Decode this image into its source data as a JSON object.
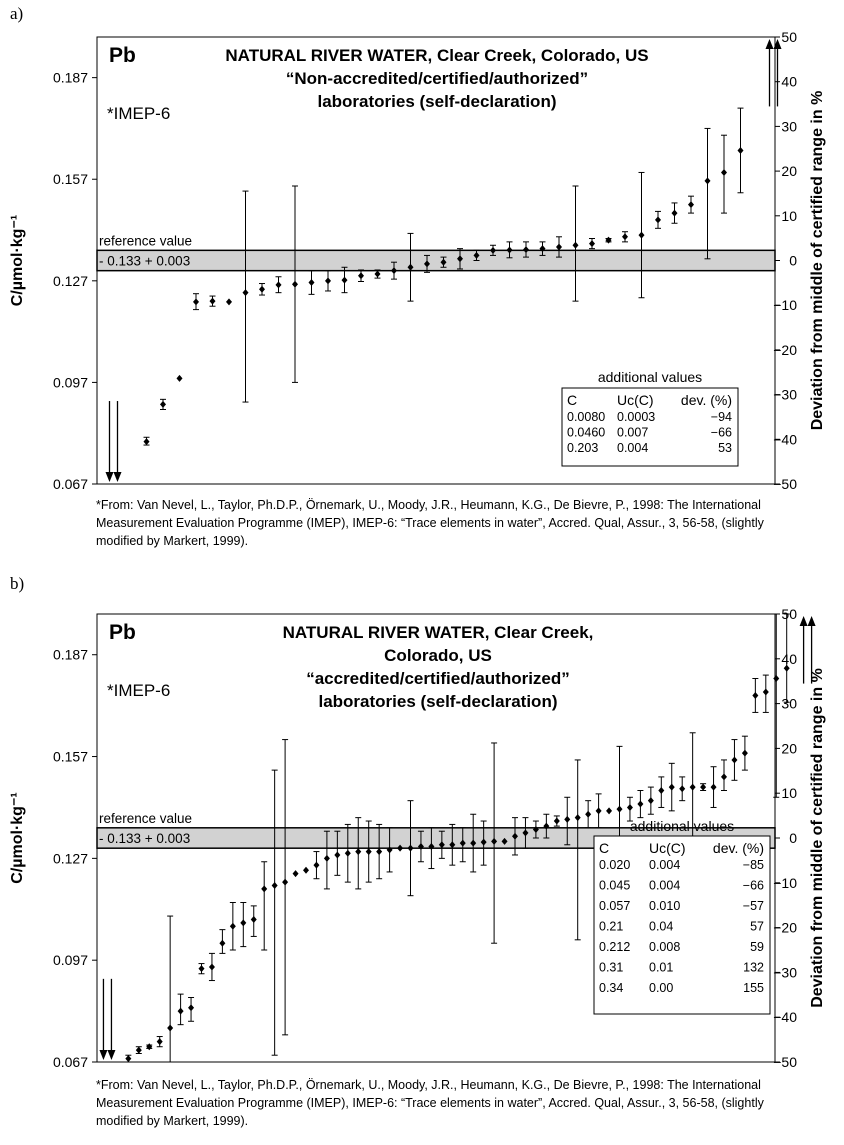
{
  "panels": [
    {
      "letter": "a)",
      "footnote": "*From: Van Nevel, L., Taylor, Ph.D.P., Örnemark, U., Moody, J.R., Heumann, K.G., De Bievre, P., 1998: The International Measurement Evaluation Programme (IMEP), IMEP-6: “Trace elements in water”, Accred. Qual, Assur., 3, 56-58, (slightly modified by Markert, 1999)."
    },
    {
      "letter": "b)",
      "footnote": "*From: Van Nevel, L., Taylor, Ph.D.P., Örnemark, U., Moody, J.R., Heumann, K.G., De Bievre, P., 1998: The International Measurement Evaluation Programme (IMEP), IMEP-6: “Trace elements in water”, Accred. Qual, Assur., 3, 56-58, (slightly modified by Markert, 1999)."
    }
  ],
  "chart_data": [
    {
      "type": "scatter",
      "element": "Pb",
      "source_tag": "*IMEP-6",
      "title_lines": [
        "NATURAL RIVER WATER, Clear Creek, Colorado, US",
        "“Non-accredited/certified/authorized”",
        "laboratories (self-declaration)"
      ],
      "ylabel": "C/µmol·kg⁻¹",
      "y2label": "Deviation from middle of certified range in %",
      "ylim": [
        0.067,
        0.199
      ],
      "yticks": [
        "0.187",
        "0.157",
        "0.127",
        "0.097",
        "0.067"
      ],
      "y2lim": [
        -50,
        50
      ],
      "y2ticks": [
        "50",
        "40",
        "30",
        "20",
        "10",
        "0",
        "−10",
        "−20",
        "−30",
        "−40",
        "−50"
      ],
      "reference": {
        "label": "reference value",
        "value_text": "0.133 + 0.003",
        "low": 0.13,
        "high": 0.136
      },
      "arrows": [
        {
          "x": 1,
          "direction": "down",
          "count": 2
        },
        {
          "x": 41,
          "direction": "up",
          "count": 2
        }
      ],
      "points": [
        {
          "x": 3,
          "y": 0.0795,
          "lo": 0.0785,
          "hi": 0.0808
        },
        {
          "x": 4,
          "y": 0.0905,
          "lo": 0.089,
          "hi": 0.092
        },
        {
          "x": 5,
          "y": 0.0982,
          "lo": 0.0982,
          "hi": 0.0982
        },
        {
          "x": 6,
          "y": 0.1208,
          "lo": 0.1185,
          "hi": 0.1232
        },
        {
          "x": 7,
          "y": 0.121,
          "lo": 0.1195,
          "hi": 0.1225
        },
        {
          "x": 8,
          "y": 0.1208,
          "lo": 0.1208,
          "hi": 0.1208
        },
        {
          "x": 9,
          "y": 0.1235,
          "lo": 0.0912,
          "hi": 0.1535
        },
        {
          "x": 10,
          "y": 0.1245,
          "lo": 0.1228,
          "hi": 0.1262
        },
        {
          "x": 11,
          "y": 0.1258,
          "lo": 0.1235,
          "hi": 0.1282
        },
        {
          "x": 12,
          "y": 0.126,
          "lo": 0.097,
          "hi": 0.155
        },
        {
          "x": 13,
          "y": 0.1265,
          "lo": 0.123,
          "hi": 0.13
        },
        {
          "x": 14,
          "y": 0.127,
          "lo": 0.124,
          "hi": 0.13
        },
        {
          "x": 15,
          "y": 0.1272,
          "lo": 0.1235,
          "hi": 0.131
        },
        {
          "x": 16,
          "y": 0.1285,
          "lo": 0.1268,
          "hi": 0.1302
        },
        {
          "x": 17,
          "y": 0.129,
          "lo": 0.1278,
          "hi": 0.1302
        },
        {
          "x": 18,
          "y": 0.13,
          "lo": 0.1275,
          "hi": 0.1325
        },
        {
          "x": 19,
          "y": 0.131,
          "lo": 0.121,
          "hi": 0.141
        },
        {
          "x": 20,
          "y": 0.132,
          "lo": 0.1295,
          "hi": 0.1345
        },
        {
          "x": 21,
          "y": 0.1325,
          "lo": 0.131,
          "hi": 0.134
        },
        {
          "x": 22,
          "y": 0.1335,
          "lo": 0.1305,
          "hi": 0.1365
        },
        {
          "x": 23,
          "y": 0.1345,
          "lo": 0.133,
          "hi": 0.136
        },
        {
          "x": 24,
          "y": 0.136,
          "lo": 0.1345,
          "hi": 0.1375
        },
        {
          "x": 25,
          "y": 0.1361,
          "lo": 0.1338,
          "hi": 0.1385
        },
        {
          "x": 26,
          "y": 0.1362,
          "lo": 0.134,
          "hi": 0.1385
        },
        {
          "x": 27,
          "y": 0.1365,
          "lo": 0.1345,
          "hi": 0.1385
        },
        {
          "x": 28,
          "y": 0.137,
          "lo": 0.134,
          "hi": 0.14
        },
        {
          "x": 29,
          "y": 0.1375,
          "lo": 0.121,
          "hi": 0.155
        },
        {
          "x": 30,
          "y": 0.138,
          "lo": 0.1365,
          "hi": 0.1395
        },
        {
          "x": 31,
          "y": 0.139,
          "lo": 0.1385,
          "hi": 0.1395
        },
        {
          "x": 32,
          "y": 0.14,
          "lo": 0.1385,
          "hi": 0.1415
        },
        {
          "x": 33,
          "y": 0.1405,
          "lo": 0.122,
          "hi": 0.159
        },
        {
          "x": 34,
          "y": 0.145,
          "lo": 0.1425,
          "hi": 0.1475
        },
        {
          "x": 35,
          "y": 0.147,
          "lo": 0.144,
          "hi": 0.15
        },
        {
          "x": 36,
          "y": 0.1495,
          "lo": 0.147,
          "hi": 0.152
        },
        {
          "x": 37,
          "y": 0.1565,
          "lo": 0.1335,
          "hi": 0.172
        },
        {
          "x": 38,
          "y": 0.159,
          "lo": 0.147,
          "hi": 0.17
        },
        {
          "x": 39,
          "y": 0.1655,
          "lo": 0.153,
          "hi": 0.178
        }
      ],
      "additional_values": {
        "title": "additional values",
        "headers": [
          "C",
          "Uc(C)",
          "dev. (%)"
        ],
        "rows": [
          [
            "0.0080",
            "0.0003",
            "−94"
          ],
          [
            "0.0460",
            "0.007",
            "−66"
          ],
          [
            "0.203",
            "0.004",
            "53"
          ]
        ]
      }
    },
    {
      "type": "scatter",
      "element": "Pb",
      "source_tag": "*IMEP-6",
      "title_lines": [
        "NATURAL RIVER WATER, Clear Creek,",
        "Colorado, US",
        "“accredited/certified/authorized”",
        "laboratories (self-declaration)"
      ],
      "ylabel": "C/µmol·kg⁻¹",
      "y2label": "Deviation from middle of certified range in %",
      "ylim": [
        0.067,
        0.199
      ],
      "yticks": [
        "0.187",
        "0.157",
        "0.127",
        "0.097",
        "0.067"
      ],
      "y2lim": [
        -50,
        50
      ],
      "y2ticks": [
        "50",
        "40",
        "30",
        "20",
        "10",
        "0",
        "−10",
        "−20",
        "−30",
        "−40",
        "−50"
      ],
      "reference": {
        "label": "reference value",
        "value_text": "0.133 + 0.003",
        "low": 0.13,
        "high": 0.136
      },
      "arrows": [
        {
          "x": 1,
          "direction": "down",
          "count": 2
        },
        {
          "x": 68,
          "direction": "up",
          "count": 2
        }
      ],
      "points": [
        {
          "x": 3,
          "y": 0.068,
          "lo": 0.067,
          "hi": 0.069
        },
        {
          "x": 4,
          "y": 0.0705,
          "lo": 0.0695,
          "hi": 0.0715
        },
        {
          "x": 5,
          "y": 0.0715,
          "lo": 0.071,
          "hi": 0.072
        },
        {
          "x": 6,
          "y": 0.073,
          "lo": 0.0715,
          "hi": 0.0745
        },
        {
          "x": 7,
          "y": 0.077,
          "lo": 0.067,
          "hi": 0.11
        },
        {
          "x": 8,
          "y": 0.082,
          "lo": 0.078,
          "hi": 0.087
        },
        {
          "x": 9,
          "y": 0.083,
          "lo": 0.079,
          "hi": 0.086
        },
        {
          "x": 10,
          "y": 0.0945,
          "lo": 0.093,
          "hi": 0.096
        },
        {
          "x": 11,
          "y": 0.095,
          "lo": 0.091,
          "hi": 0.099
        },
        {
          "x": 12,
          "y": 0.102,
          "lo": 0.099,
          "hi": 0.106
        },
        {
          "x": 13,
          "y": 0.107,
          "lo": 0.1,
          "hi": 0.114
        },
        {
          "x": 14,
          "y": 0.108,
          "lo": 0.101,
          "hi": 0.114
        },
        {
          "x": 15,
          "y": 0.109,
          "lo": 0.104,
          "hi": 0.113
        },
        {
          "x": 16,
          "y": 0.118,
          "lo": 0.1,
          "hi": 0.126
        },
        {
          "x": 17,
          "y": 0.119,
          "lo": 0.069,
          "hi": 0.153
        },
        {
          "x": 18,
          "y": 0.12,
          "lo": 0.075,
          "hi": 0.162
        },
        {
          "x": 19,
          "y": 0.1225,
          "lo": 0.1225,
          "hi": 0.1225
        },
        {
          "x": 20,
          "y": 0.1235,
          "lo": 0.1235,
          "hi": 0.1235
        },
        {
          "x": 21,
          "y": 0.125,
          "lo": 0.121,
          "hi": 0.129
        },
        {
          "x": 22,
          "y": 0.127,
          "lo": 0.118,
          "hi": 0.135
        },
        {
          "x": 23,
          "y": 0.128,
          "lo": 0.122,
          "hi": 0.135
        },
        {
          "x": 24,
          "y": 0.1285,
          "lo": 0.12,
          "hi": 0.137
        },
        {
          "x": 25,
          "y": 0.129,
          "lo": 0.118,
          "hi": 0.139
        },
        {
          "x": 26,
          "y": 0.129,
          "lo": 0.12,
          "hi": 0.138
        },
        {
          "x": 27,
          "y": 0.129,
          "lo": 0.121,
          "hi": 0.137
        },
        {
          "x": 28,
          "y": 0.1295,
          "lo": 0.123,
          "hi": 0.136
        },
        {
          "x": 29,
          "y": 0.13,
          "lo": 0.13,
          "hi": 0.13
        },
        {
          "x": 30,
          "y": 0.13,
          "lo": 0.116,
          "hi": 0.144
        },
        {
          "x": 31,
          "y": 0.1305,
          "lo": 0.126,
          "hi": 0.135
        },
        {
          "x": 32,
          "y": 0.1305,
          "lo": 0.124,
          "hi": 0.136
        },
        {
          "x": 33,
          "y": 0.131,
          "lo": 0.127,
          "hi": 0.135
        },
        {
          "x": 34,
          "y": 0.131,
          "lo": 0.125,
          "hi": 0.137
        },
        {
          "x": 35,
          "y": 0.1315,
          "lo": 0.126,
          "hi": 0.136
        },
        {
          "x": 36,
          "y": 0.1315,
          "lo": 0.123,
          "hi": 0.14
        },
        {
          "x": 37,
          "y": 0.1318,
          "lo": 0.125,
          "hi": 0.138
        },
        {
          "x": 38,
          "y": 0.132,
          "lo": 0.102,
          "hi": 0.161
        },
        {
          "x": 39,
          "y": 0.132,
          "lo": 0.132,
          "hi": 0.132
        },
        {
          "x": 40,
          "y": 0.1335,
          "lo": 0.128,
          "hi": 0.139
        },
        {
          "x": 41,
          "y": 0.1345,
          "lo": 0.13,
          "hi": 0.139
        },
        {
          "x": 42,
          "y": 0.1355,
          "lo": 0.133,
          "hi": 0.138
        },
        {
          "x": 43,
          "y": 0.1365,
          "lo": 0.133,
          "hi": 0.14
        },
        {
          "x": 44,
          "y": 0.138,
          "lo": 0.1365,
          "hi": 0.1395
        },
        {
          "x": 45,
          "y": 0.1385,
          "lo": 0.131,
          "hi": 0.145
        },
        {
          "x": 46,
          "y": 0.139,
          "lo": 0.103,
          "hi": 0.156
        },
        {
          "x": 47,
          "y": 0.14,
          "lo": 0.136,
          "hi": 0.144
        },
        {
          "x": 48,
          "y": 0.141,
          "lo": 0.136,
          "hi": 0.146
        },
        {
          "x": 49,
          "y": 0.141,
          "lo": 0.141,
          "hi": 0.141
        },
        {
          "x": 50,
          "y": 0.1415,
          "lo": 0.113,
          "hi": 0.16
        },
        {
          "x": 51,
          "y": 0.142,
          "lo": 0.138,
          "hi": 0.145
        },
        {
          "x": 52,
          "y": 0.143,
          "lo": 0.139,
          "hi": 0.147
        },
        {
          "x": 53,
          "y": 0.144,
          "lo": 0.14,
          "hi": 0.148
        },
        {
          "x": 54,
          "y": 0.147,
          "lo": 0.142,
          "hi": 0.151
        },
        {
          "x": 55,
          "y": 0.148,
          "lo": 0.141,
          "hi": 0.155
        },
        {
          "x": 56,
          "y": 0.1475,
          "lo": 0.144,
          "hi": 0.151
        },
        {
          "x": 57,
          "y": 0.148,
          "lo": 0.131,
          "hi": 0.164
        },
        {
          "x": 58,
          "y": 0.148,
          "lo": 0.147,
          "hi": 0.149
        },
        {
          "x": 59,
          "y": 0.148,
          "lo": 0.142,
          "hi": 0.154
        },
        {
          "x": 60,
          "y": 0.151,
          "lo": 0.147,
          "hi": 0.156
        },
        {
          "x": 61,
          "y": 0.156,
          "lo": 0.15,
          "hi": 0.162
        },
        {
          "x": 62,
          "y": 0.158,
          "lo": 0.153,
          "hi": 0.163
        },
        {
          "x": 63,
          "y": 0.175,
          "lo": 0.17,
          "hi": 0.18
        },
        {
          "x": 64,
          "y": 0.176,
          "lo": 0.17,
          "hi": 0.181
        },
        {
          "x": 65,
          "y": 0.18,
          "lo": 0.145,
          "hi": 0.199
        },
        {
          "x": 66,
          "y": 0.183,
          "lo": 0.173,
          "hi": 0.199
        }
      ],
      "additional_values": {
        "title": "additional values",
        "headers": [
          "C",
          "Uc(C)",
          "dev. (%)"
        ],
        "rows": [
          [
            "0.020",
            "0.004",
            "−85"
          ],
          [
            "0.045",
            "0.004",
            "−66"
          ],
          [
            "0.057",
            "0.010",
            "−57"
          ],
          [
            "0.21",
            "0.04",
            "57"
          ],
          [
            "0.212",
            "0.008",
            "59"
          ],
          [
            "0.31",
            "0.01",
            "132"
          ],
          [
            "0.34",
            "0.00",
            "155"
          ]
        ]
      }
    }
  ]
}
